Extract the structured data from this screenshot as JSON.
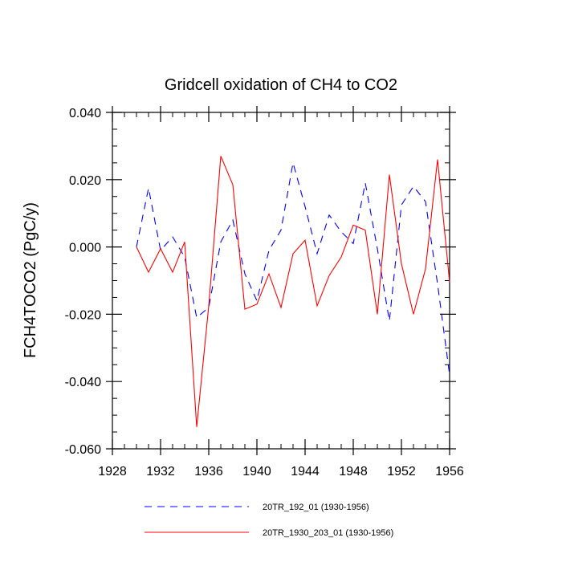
{
  "chart_data": {
    "type": "line",
    "title": "Gridcell oxidation of CH4 to CO2",
    "xlabel": "",
    "ylabel": "FCH4TOCO2  (PgC/y)",
    "xlim": [
      1928,
      1956
    ],
    "ylim": [
      -0.06,
      0.04
    ],
    "x_ticks": [
      1928,
      1932,
      1936,
      1940,
      1944,
      1948,
      1952,
      1956
    ],
    "y_ticks": [
      -0.06,
      -0.04,
      -0.02,
      0.0,
      0.02,
      0.04
    ],
    "y_tick_labels": [
      "-0.060",
      "-0.040",
      "-0.020",
      "0.000",
      "0.020",
      "0.040"
    ],
    "x": [
      1930,
      1931,
      1932,
      1933,
      1934,
      1935,
      1936,
      1937,
      1938,
      1939,
      1940,
      1941,
      1942,
      1943,
      1944,
      1945,
      1946,
      1947,
      1948,
      1949,
      1950,
      1951,
      1952,
      1953,
      1954,
      1955,
      1956
    ],
    "series": [
      {
        "name": "20TR_192_01 (1930-1956)",
        "color": "#0000ff",
        "dash": "dashed",
        "values": [
          0.0,
          0.0175,
          -0.001,
          0.003,
          -0.003,
          -0.021,
          -0.018,
          0.0015,
          0.008,
          -0.008,
          -0.016,
          -0.001,
          0.005,
          0.025,
          0.012,
          -0.002,
          0.0095,
          0.0045,
          0.001,
          0.019,
          -0.0005,
          -0.022,
          0.0125,
          0.018,
          0.0135,
          -0.011,
          -0.038
        ]
      },
      {
        "name": "20TR_1930_203_01 (1930-1956)",
        "color": "#ff0000",
        "dash": "solid",
        "values": [
          0.0,
          -0.0075,
          -0.0005,
          -0.0075,
          0.0015,
          -0.0535,
          -0.0175,
          0.027,
          0.0185,
          -0.0185,
          -0.017,
          -0.008,
          -0.018,
          -0.002,
          0.002,
          -0.0175,
          -0.0085,
          -0.003,
          0.0065,
          0.005,
          -0.02,
          0.0215,
          -0.005,
          -0.02,
          -0.0065,
          0.026,
          -0.0105
        ]
      }
    ],
    "legend": {
      "placement": "bottom-center",
      "entries": [
        "20TR_192_01 (1930-1956)",
        "20TR_1930_203_01 (1930-1956)"
      ]
    },
    "grid": false
  }
}
